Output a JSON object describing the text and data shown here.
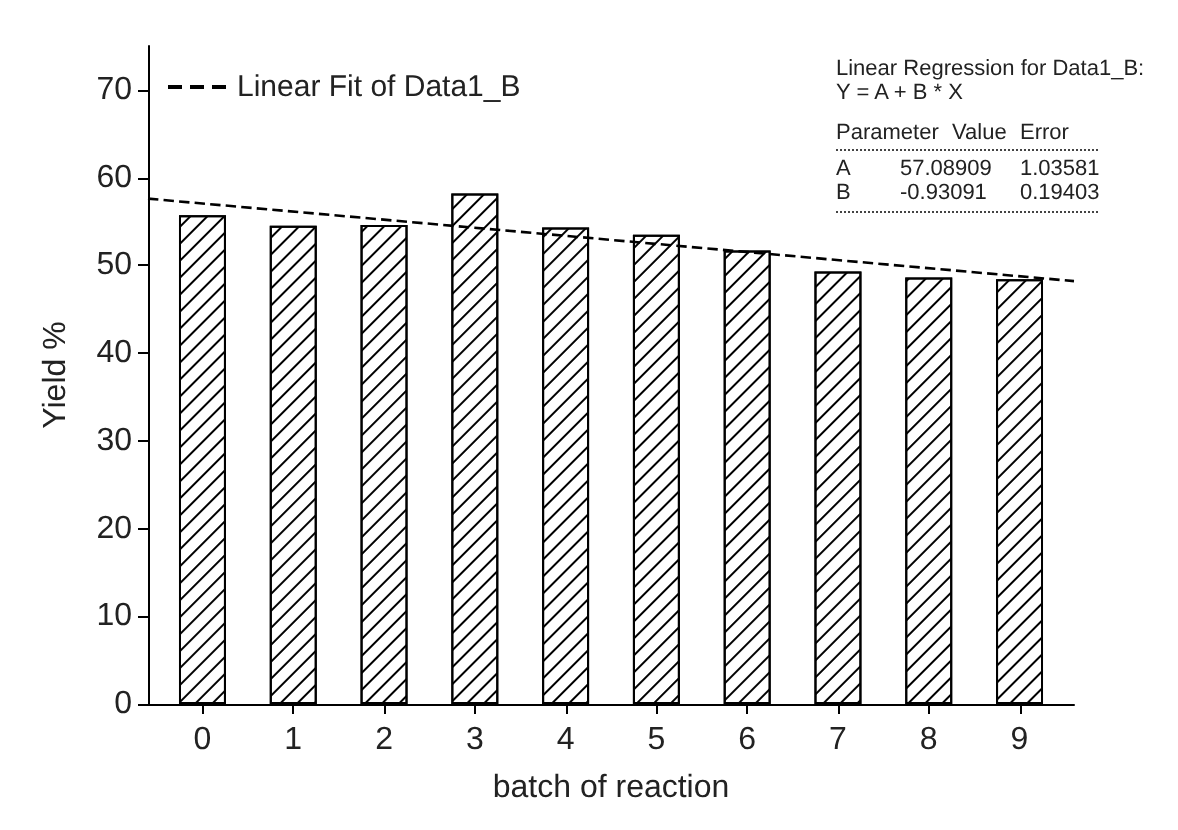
{
  "chart_data": {
    "type": "bar",
    "xlabel": "batch of reaction",
    "ylabel": "Yield %",
    "x": [
      0,
      1,
      2,
      3,
      4,
      5,
      6,
      7,
      8,
      9
    ],
    "xlim": [
      -0.6,
      9.6
    ],
    "xticks": [
      0,
      1,
      2,
      3,
      4,
      5,
      6,
      7,
      8,
      9
    ],
    "ylim": [
      0,
      75
    ],
    "yticks": [
      0,
      10,
      20,
      30,
      40,
      50,
      60,
      70
    ],
    "series": [
      {
        "color": "#000000",
        "values": [
          55.7,
          54.5,
          54.6,
          58.2,
          54.3,
          53.5,
          51.7,
          49.3,
          48.6,
          48.4
        ]
      },
      {
        "type": "line",
        "name": "Linear Fit of Data1_B",
        "color": "#000000",
        "line_style": "dashed",
        "marker": "none",
        "x": [
          -0.6,
          9.6
        ],
        "values": [
          57.6,
          48.2
        ]
      }
    ],
    "legend": "top left",
    "grid": false,
    "annotations": [
      "Linear Regression for Data1_B:",
      "Y = A + B * X",
      "Parameter\tValue\tError",
      "A\t57.08909\t1.03581",
      "B\t-0.93091\t0.19403"
    ]
  }
}
